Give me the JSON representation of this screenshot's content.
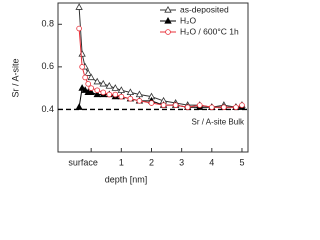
{
  "chart_data": {
    "type": "line",
    "x_label": "depth [nm]",
    "y_label": "Sr / A-site",
    "x": [
      -0.4,
      -0.3,
      -0.2,
      -0.1,
      0,
      0.2,
      0.4,
      0.6,
      0.8,
      1.0,
      1.3,
      1.6,
      2.0,
      2.4,
      2.8,
      3.2,
      3.6,
      4.0,
      4.4,
      4.8,
      5.0
    ],
    "series": [
      {
        "name": "as-deposited",
        "color": "#333333",
        "marker": "triangle-open",
        "values": [
          0.88,
          0.66,
          0.6,
          0.57,
          0.55,
          0.53,
          0.52,
          0.51,
          0.5,
          0.49,
          0.48,
          0.47,
          0.46,
          0.44,
          0.43,
          0.42,
          0.42,
          0.41,
          0.42,
          0.41,
          0.42
        ]
      },
      {
        "name": "H₂O",
        "color": "#000000",
        "marker": "triangle",
        "values": [
          0.41,
          0.5,
          0.49,
          0.48,
          0.48,
          0.47,
          0.47,
          0.47,
          0.46,
          0.46,
          0.45,
          0.44,
          0.44,
          0.42,
          0.42,
          0.41,
          0.41,
          0.41,
          0.41,
          0.41,
          0.41
        ]
      },
      {
        "name": "H₂O / 600°C 1h",
        "color": "#e8303a",
        "marker": "circle-open",
        "values": [
          0.78,
          0.6,
          0.55,
          0.52,
          0.5,
          0.49,
          0.48,
          0.47,
          0.47,
          0.46,
          0.45,
          0.44,
          0.43,
          0.42,
          0.42,
          0.41,
          0.42,
          0.41,
          0.41,
          0.41,
          0.42
        ]
      }
    ],
    "reference_line": {
      "value": 0.4,
      "label": "Sr / A-site Bulk"
    },
    "xlim": [
      -1.1,
      5.2
    ],
    "ylim": [
      0.2,
      0.9
    ],
    "xticks": [
      {
        "value": 0,
        "label": "surface"
      },
      1,
      2,
      3,
      4,
      5
    ],
    "yticks": [
      0.4,
      0.6,
      0.8
    ],
    "legend": "top-right"
  }
}
